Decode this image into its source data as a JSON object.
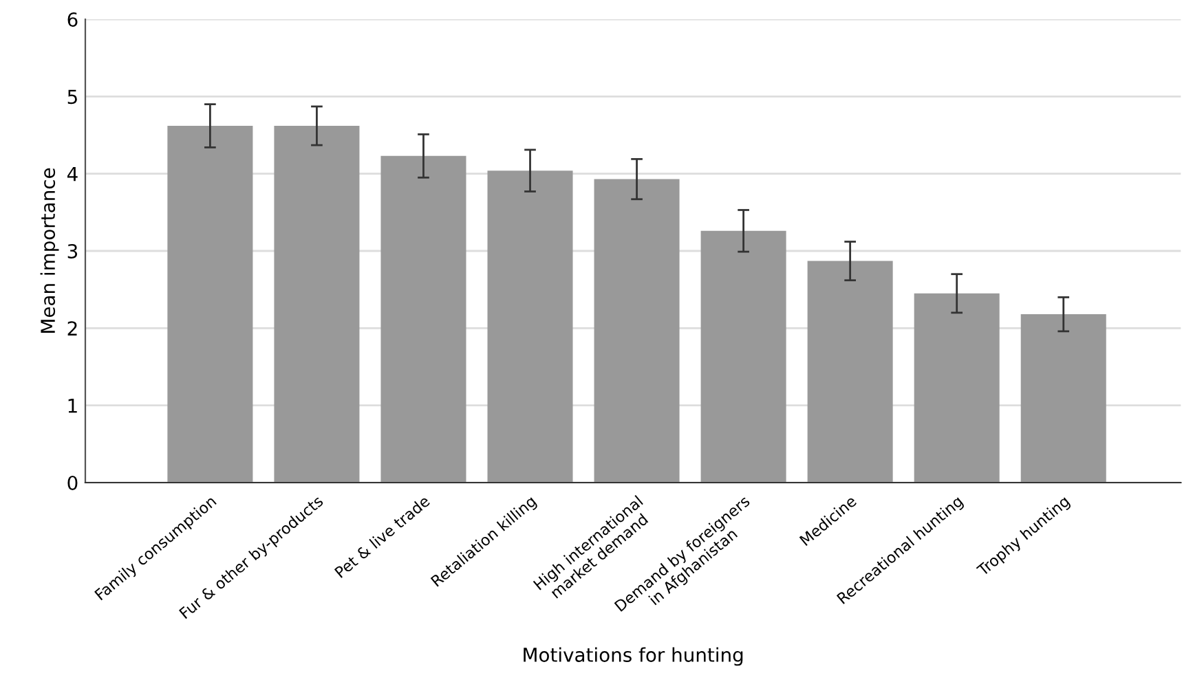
{
  "chart_data": {
    "type": "bar",
    "xlabel": "Motivations for hunting",
    "ylabel": "Mean importance",
    "categories": [
      "Family consumption",
      "Fur & other by-products",
      "Pet & live trade",
      "Retaliation killing",
      "High international\nmarket demand",
      "Demand by foreigners\nin Afghanistan",
      "Medicine",
      "Recreational hunting",
      "Trophy hunting"
    ],
    "values": [
      4.62,
      4.62,
      4.23,
      4.04,
      3.93,
      3.26,
      2.87,
      2.45,
      2.18
    ],
    "errors": [
      0.28,
      0.25,
      0.28,
      0.27,
      0.26,
      0.27,
      0.25,
      0.25,
      0.22
    ],
    "color": "#999999",
    "ylim": [
      0,
      6
    ],
    "yticks": [
      0,
      1,
      2,
      3,
      4,
      5,
      6
    ],
    "grid": "y"
  }
}
